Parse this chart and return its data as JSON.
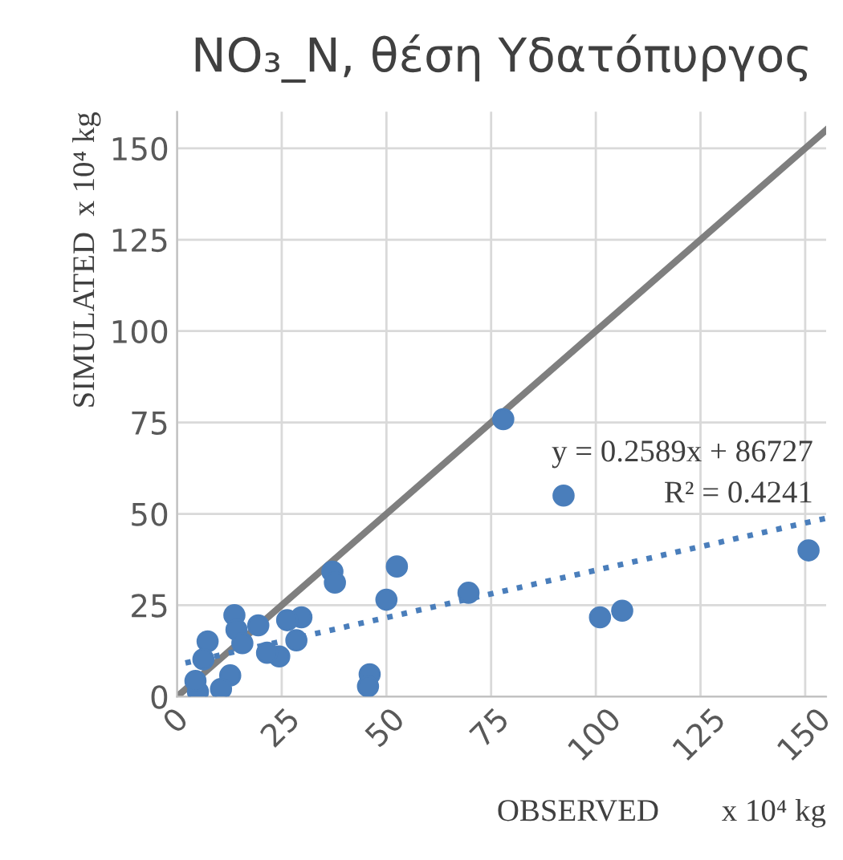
{
  "chart_data": {
    "type": "scatter",
    "title": "NO₃_N, θέση Υδατόπυργος",
    "xlabel": "OBSERVED        x 10⁴ kg",
    "ylabel": "SIMULATED  x 10⁴ kg",
    "xlim": [
      0,
      155
    ],
    "ylim": [
      0,
      160
    ],
    "xticks": [
      0,
      25,
      50,
      75,
      100,
      125,
      150
    ],
    "yticks": [
      0,
      25,
      50,
      75,
      100,
      125,
      150
    ],
    "grid": true,
    "marker": "circle",
    "annotations": [
      "y = 0.2589x + 86727",
      "R² = 0.4241"
    ],
    "series": [
      {
        "type": "line",
        "color": "#7f7f7f",
        "line_style": "solid",
        "marker": "none",
        "x": [
          0,
          155
        ],
        "values": [
          0,
          155
        ]
      },
      {
        "type": "line",
        "color": "#4a7ebb",
        "line_style": "dotted",
        "marker": "none",
        "x": [
          2,
          155
        ],
        "values": [
          9.2,
          48.8
        ]
      },
      {
        "color": "#4a7ebb",
        "x": [
          92.3,
          77.9,
          150.8,
          101,
          106.3,
          69.6,
          52.5,
          50,
          37.1,
          37.7,
          46,
          45.6,
          29.7,
          26.3,
          28.5,
          24.4,
          21.5,
          19.4,
          13.7,
          14.2,
          15.6,
          7.3,
          12.7,
          10.5,
          6.3,
          5,
          4.4
        ],
        "values": [
          55,
          75.9,
          40,
          21.7,
          23.5,
          28.4,
          35.6,
          26.5,
          34.2,
          31.2,
          6.1,
          2.8,
          21.7,
          20.9,
          15.4,
          11,
          12,
          19.5,
          22.3,
          18.3,
          14.6,
          15.1,
          5.8,
          2.1,
          10.2,
          1.3,
          4.3
        ]
      }
    ]
  }
}
